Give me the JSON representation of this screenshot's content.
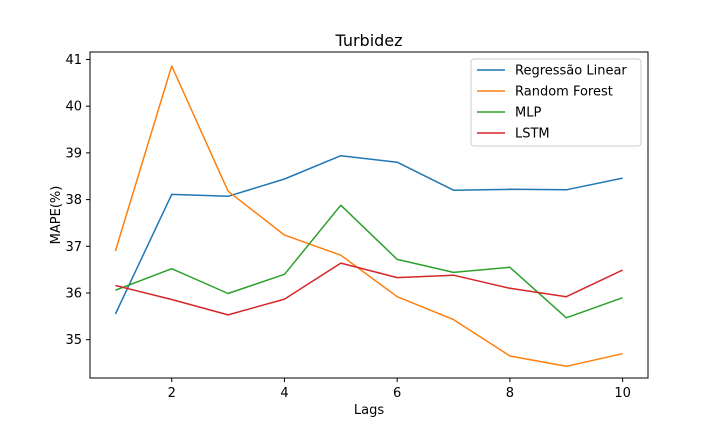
{
  "chart_data": {
    "type": "line",
    "title": "Turbidez",
    "xlabel": "Lags",
    "ylabel": "MAPE(%)",
    "xlim": [
      0.55,
      10.45
    ],
    "ylim": [
      34.18,
      41.16
    ],
    "xticks": [
      2,
      4,
      6,
      8,
      10
    ],
    "yticks": [
      35,
      36,
      37,
      38,
      39,
      40,
      41
    ],
    "grid": false,
    "legend_position": "top-right",
    "x": [
      1,
      2,
      3,
      4,
      5,
      6,
      7,
      8,
      9,
      10
    ],
    "series": [
      {
        "name": "Regressão Linear",
        "color": "#1f77b4",
        "values": [
          35.55,
          38.11,
          38.07,
          38.44,
          38.94,
          38.8,
          38.2,
          38.22,
          38.21,
          38.46
        ]
      },
      {
        "name": "Random Forest",
        "color": "#ff7f0e",
        "values": [
          36.9,
          40.86,
          38.18,
          37.24,
          36.81,
          35.92,
          35.43,
          34.65,
          34.43,
          34.7
        ]
      },
      {
        "name": "MLP",
        "color": "#2ca02c",
        "values": [
          36.06,
          36.52,
          35.99,
          36.4,
          37.88,
          36.72,
          36.44,
          36.55,
          35.47,
          35.9
        ]
      },
      {
        "name": "LSTM",
        "color": "#d62728",
        "values": [
          36.16,
          35.86,
          35.53,
          35.87,
          36.64,
          36.33,
          36.38,
          36.1,
          35.92,
          36.49
        ]
      }
    ]
  }
}
